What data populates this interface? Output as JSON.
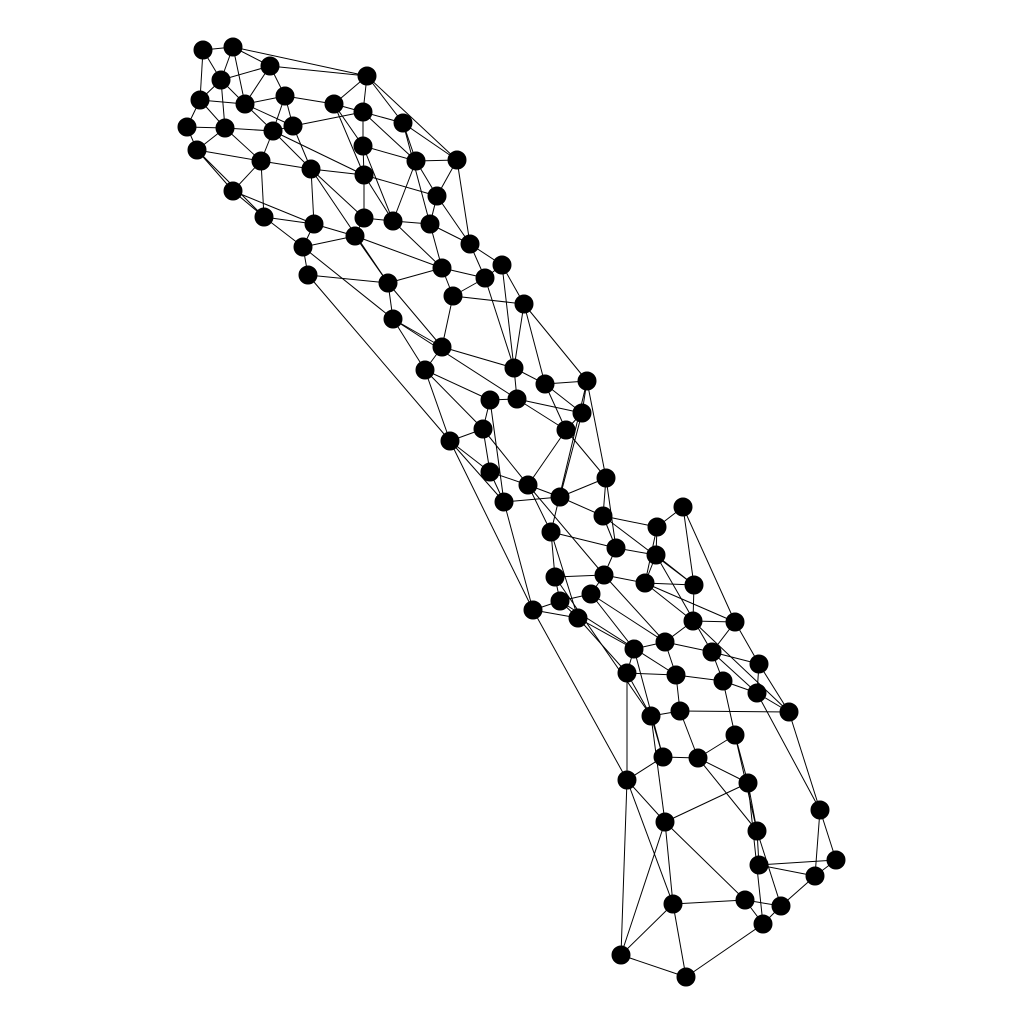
{
  "diagram": {
    "type": "network-graph",
    "node_count": 140,
    "node_color": "#000000",
    "edge_color": "#000000",
    "background": "#ffffff",
    "labels_shown": false
  }
}
